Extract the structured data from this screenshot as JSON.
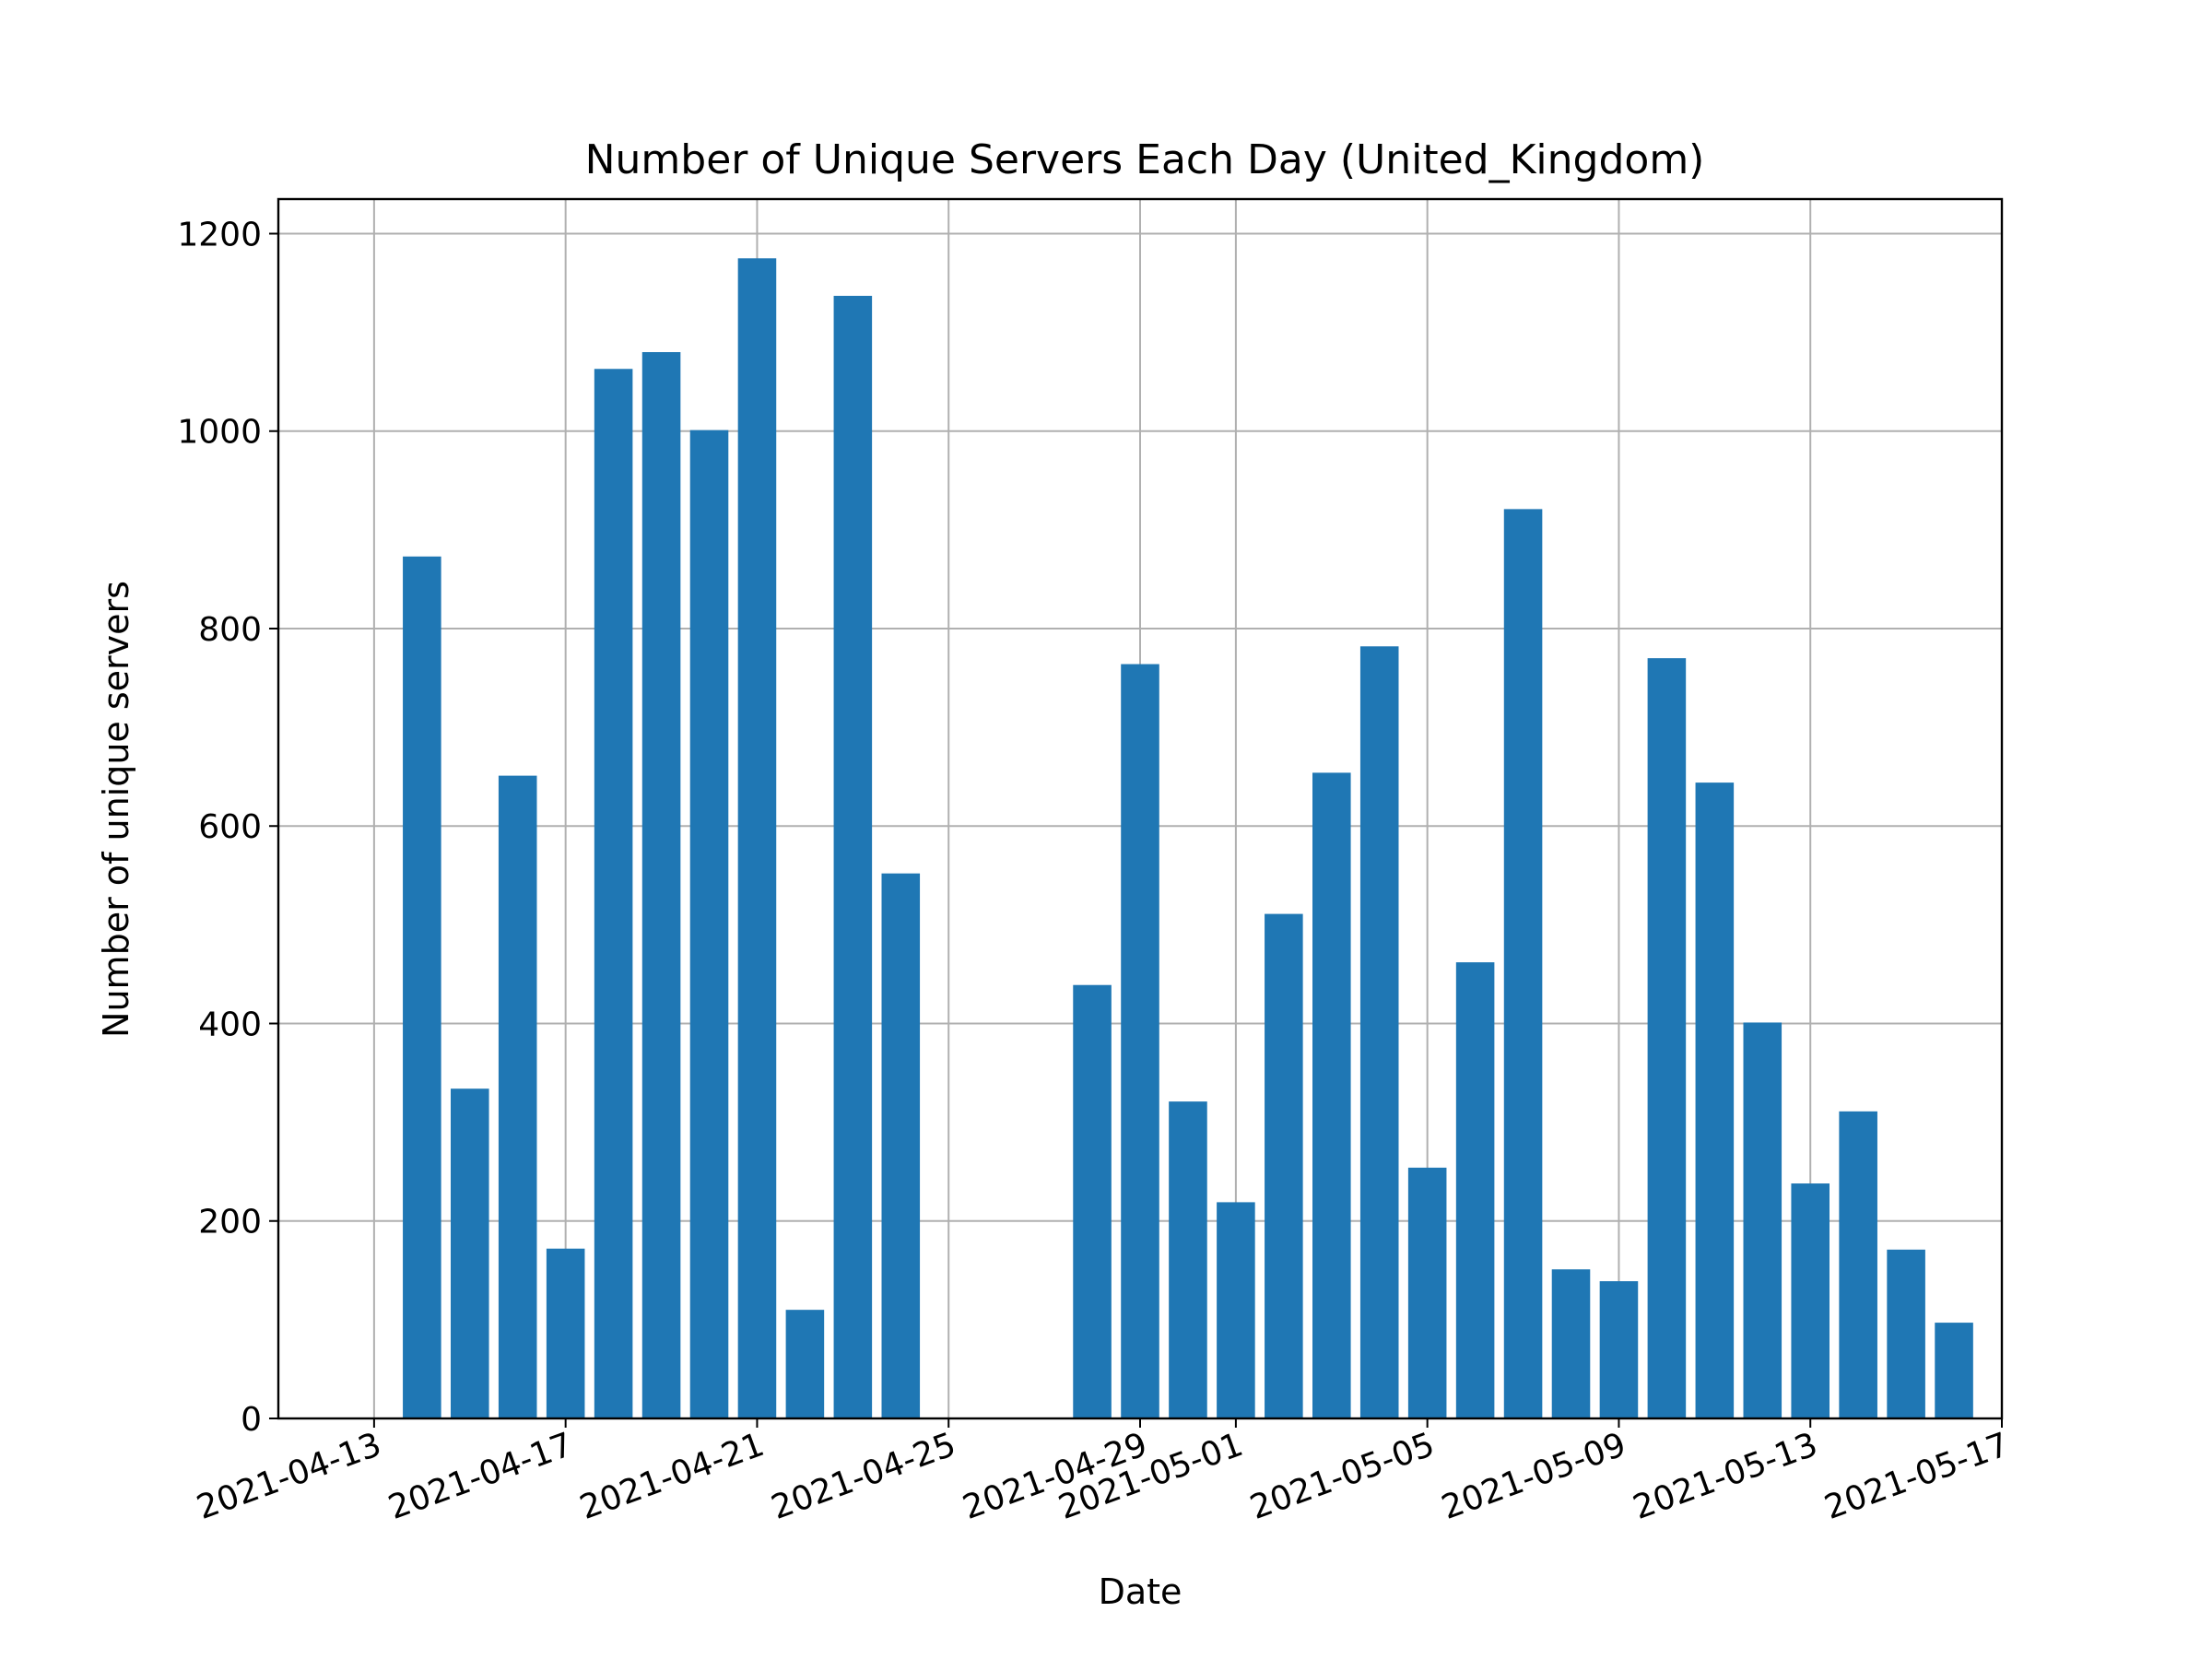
{
  "chart_data": {
    "type": "bar",
    "title": "Number of Unique Servers Each Day (United_Kingdom)",
    "xlabel": "Date",
    "ylabel": "Number of unique servers",
    "ylim": [
      0,
      1235
    ],
    "xlim": [
      "2021-04-11",
      "2021-05-17"
    ],
    "grid": true,
    "bar_color": "#1f77b4",
    "x_tick_labels": [
      "2021-04-13",
      "2021-04-17",
      "2021-04-21",
      "2021-04-25",
      "2021-04-29",
      "2021-05-01",
      "2021-05-05",
      "2021-05-09",
      "2021-05-13",
      "2021-05-17"
    ],
    "y_tick_values": [
      0,
      200,
      400,
      600,
      800,
      1000,
      1200
    ],
    "y_tick_labels": [
      "0",
      "200",
      "400",
      "600",
      "800",
      "1000",
      "1200"
    ],
    "categories": [
      "2021-04-14",
      "2021-04-15",
      "2021-04-16",
      "2021-04-17",
      "2021-04-18",
      "2021-04-19",
      "2021-04-20",
      "2021-04-21",
      "2021-04-22",
      "2021-04-23",
      "2021-04-24",
      "2021-04-28",
      "2021-04-29",
      "2021-04-30",
      "2021-05-01",
      "2021-05-02",
      "2021-05-03",
      "2021-05-04",
      "2021-05-05",
      "2021-05-06",
      "2021-05-07",
      "2021-05-08",
      "2021-05-09",
      "2021-05-10",
      "2021-05-11",
      "2021-05-12",
      "2021-05-13",
      "2021-05-14",
      "2021-05-15",
      "2021-05-16"
    ],
    "values": [
      873,
      334,
      651,
      172,
      1063,
      1080,
      1001,
      1175,
      110,
      1137,
      552,
      439,
      764,
      321,
      219,
      511,
      654,
      782,
      254,
      462,
      921,
      151,
      139,
      770,
      644,
      401,
      238,
      311,
      171,
      97
    ]
  }
}
